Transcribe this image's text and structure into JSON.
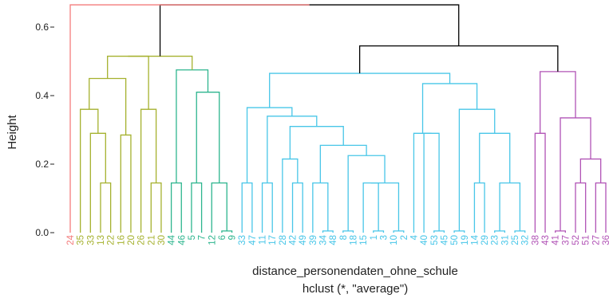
{
  "chart_data": {
    "type": "dendrogram",
    "xlabel": "distance_personendaten_ohne_schule",
    "sublabel": "hclust (*, \"average\")",
    "ylabel": "Height",
    "ylim": [
      0,
      0.66
    ],
    "yticks": [
      "0.0",
      "0.2",
      "0.4",
      "0.6"
    ],
    "ytick_values": [
      0,
      0.2,
      0.4,
      0.6
    ],
    "colors": {
      "red": "#f47c7c",
      "olive": "#a5b12e",
      "green": "#2db58e",
      "cyan": "#48c6e8",
      "purple": "#b153b6",
      "black": "#000000"
    },
    "leaves": [
      {
        "label": "24",
        "group": "red"
      },
      {
        "label": "35",
        "group": "olive"
      },
      {
        "label": "33",
        "group": "olive"
      },
      {
        "label": "13",
        "group": "olive"
      },
      {
        "label": "22",
        "group": "olive"
      },
      {
        "label": "16",
        "group": "olive"
      },
      {
        "label": "20",
        "group": "olive"
      },
      {
        "label": "26",
        "group": "olive"
      },
      {
        "label": "21",
        "group": "olive"
      },
      {
        "label": "30",
        "group": "olive"
      },
      {
        "label": "44",
        "group": "green"
      },
      {
        "label": "46",
        "group": "green"
      },
      {
        "label": "5",
        "group": "green"
      },
      {
        "label": "7",
        "group": "green"
      },
      {
        "label": "12",
        "group": "green"
      },
      {
        "label": "6",
        "group": "green"
      },
      {
        "label": "9",
        "group": "green"
      },
      {
        "label": "33",
        "group": "cyan"
      },
      {
        "label": "47",
        "group": "cyan"
      },
      {
        "label": "11",
        "group": "cyan"
      },
      {
        "label": "17",
        "group": "cyan"
      },
      {
        "label": "28",
        "group": "cyan"
      },
      {
        "label": "42",
        "group": "cyan"
      },
      {
        "label": "49",
        "group": "cyan"
      },
      {
        "label": "39",
        "group": "cyan"
      },
      {
        "label": "34",
        "group": "cyan"
      },
      {
        "label": "48",
        "group": "cyan"
      },
      {
        "label": "8",
        "group": "cyan"
      },
      {
        "label": "18",
        "group": "cyan"
      },
      {
        "label": "15",
        "group": "cyan"
      },
      {
        "label": "1",
        "group": "cyan"
      },
      {
        "label": "3",
        "group": "cyan"
      },
      {
        "label": "10",
        "group": "cyan"
      },
      {
        "label": "2",
        "group": "cyan"
      },
      {
        "label": "4",
        "group": "cyan"
      },
      {
        "label": "40",
        "group": "cyan"
      },
      {
        "label": "53",
        "group": "cyan"
      },
      {
        "label": "45",
        "group": "cyan"
      },
      {
        "label": "50",
        "group": "cyan"
      },
      {
        "label": "19",
        "group": "cyan"
      },
      {
        "label": "14",
        "group": "cyan"
      },
      {
        "label": "29",
        "group": "cyan"
      },
      {
        "label": "23",
        "group": "cyan"
      },
      {
        "label": "31",
        "group": "cyan"
      },
      {
        "label": "25",
        "group": "cyan"
      },
      {
        "label": "32",
        "group": "cyan"
      },
      {
        "label": "38",
        "group": "purple"
      },
      {
        "label": "43",
        "group": "purple"
      },
      {
        "label": "41",
        "group": "purple"
      },
      {
        "label": "37",
        "group": "purple"
      },
      {
        "label": "52",
        "group": "purple"
      },
      {
        "label": "51",
        "group": "purple"
      },
      {
        "label": "27",
        "group": "purple"
      },
      {
        "label": "36",
        "group": "purple"
      }
    ],
    "merges": [
      {
        "left": 3,
        "right": 4,
        "height": 0.145,
        "group": "olive"
      },
      {
        "left": 2,
        "right": "m0",
        "height": 0.29,
        "group": "olive"
      },
      {
        "left": 1,
        "right": "m1",
        "height": 0.36,
        "group": "olive"
      },
      {
        "left": 5,
        "right": 6,
        "height": 0.285,
        "group": "olive"
      },
      {
        "left": "m2",
        "right": "m3",
        "height": 0.45,
        "group": "olive"
      },
      {
        "left": 8,
        "right": 9,
        "height": 0.145,
        "group": "olive"
      },
      {
        "left": 7,
        "right": "m5",
        "height": 0.36,
        "group": "olive"
      },
      {
        "left": "m4",
        "right": "m6",
        "height": 0.515,
        "group": "olive"
      },
      {
        "left": 10,
        "right": 11,
        "height": 0.145,
        "group": "green"
      },
      {
        "left": 12,
        "right": 13,
        "height": 0.145,
        "group": "green"
      },
      {
        "left": 15,
        "right": 16,
        "height": 0.005,
        "group": "green"
      },
      {
        "left": 14,
        "right": "m10",
        "height": 0.145,
        "group": "green"
      },
      {
        "left": "m9",
        "right": "m11",
        "height": 0.41,
        "group": "green"
      },
      {
        "left": "m8",
        "right": "m12",
        "height": 0.475,
        "group": "green"
      },
      {
        "left": "m7",
        "right": "m13",
        "height": 0.515,
        "group": "olive"
      },
      {
        "left": 17,
        "right": 18,
        "height": 0.145,
        "group": "cyan"
      },
      {
        "left": 19,
        "right": 20,
        "height": 0.145,
        "group": "cyan"
      },
      {
        "left": 22,
        "right": 23,
        "height": 0.145,
        "group": "cyan"
      },
      {
        "left": 21,
        "right": "m17",
        "height": 0.215,
        "group": "cyan"
      },
      {
        "left": 25,
        "right": 26,
        "height": 0.005,
        "group": "cyan"
      },
      {
        "left": 24,
        "right": "m19",
        "height": 0.145,
        "group": "cyan"
      },
      {
        "left": 27,
        "right": 28,
        "height": 0.005,
        "group": "cyan"
      },
      {
        "left": 30,
        "right": 31,
        "height": 0.005,
        "group": "cyan"
      },
      {
        "left": 29,
        "right": "m22",
        "height": 0.145,
        "group": "cyan"
      },
      {
        "left": 32,
        "right": 33,
        "height": 0.005,
        "group": "cyan"
      },
      {
        "left": "m23",
        "right": "m24",
        "height": 0.145,
        "group": "cyan"
      },
      {
        "left": "m21",
        "right": "m25",
        "height": 0.225,
        "group": "cyan"
      },
      {
        "left": "m20",
        "right": "m26",
        "height": 0.255,
        "group": "cyan"
      },
      {
        "left": "m18",
        "right": "m27",
        "height": 0.31,
        "group": "cyan"
      },
      {
        "left": "m16",
        "right": "m28",
        "height": 0.34,
        "group": "cyan"
      },
      {
        "left": "m15",
        "right": "m29",
        "height": 0.365,
        "group": "cyan"
      },
      {
        "left": 36,
        "right": 37,
        "height": 0.005,
        "group": "cyan"
      },
      {
        "left": 35,
        "right": "m31",
        "height": 0.29,
        "group": "cyan"
      },
      {
        "left": 34,
        "right": "m32",
        "height": 0.29,
        "group": "cyan"
      },
      {
        "left": 38,
        "right": 39,
        "height": 0.005,
        "group": "cyan"
      },
      {
        "left": 40,
        "right": 41,
        "height": 0.145,
        "group": "cyan"
      },
      {
        "left": 42,
        "right": 43,
        "height": 0.005,
        "group": "cyan"
      },
      {
        "left": 44,
        "right": 45,
        "height": 0.005,
        "group": "cyan"
      },
      {
        "left": "m36",
        "right": "m37",
        "height": 0.145,
        "group": "cyan"
      },
      {
        "left": "m35",
        "right": "m38",
        "height": 0.29,
        "group": "cyan"
      },
      {
        "left": "m34",
        "right": "m39",
        "height": 0.36,
        "group": "cyan"
      },
      {
        "left": "m33",
        "right": "m40",
        "height": 0.435,
        "group": "cyan"
      },
      {
        "left": "m30",
        "right": "m41",
        "height": 0.465,
        "group": "cyan"
      },
      {
        "left": 46,
        "right": 47,
        "height": 0.29,
        "group": "purple"
      },
      {
        "left": 48,
        "right": 49,
        "height": 0.005,
        "group": "purple"
      },
      {
        "left": 50,
        "right": 51,
        "height": 0.145,
        "group": "purple"
      },
      {
        "left": 52,
        "right": 53,
        "height": 0.145,
        "group": "purple"
      },
      {
        "left": "m45",
        "right": "m46",
        "height": 0.215,
        "group": "purple"
      },
      {
        "left": "m44",
        "right": "m47",
        "height": 0.335,
        "group": "purple"
      },
      {
        "left": "m43",
        "right": "m48",
        "height": 0.47,
        "group": "purple"
      },
      {
        "left": "m42",
        "right": "m49",
        "height": 0.545,
        "group": "black"
      },
      {
        "left": "m14",
        "right": "m50",
        "height": 0.665,
        "group": "black"
      },
      {
        "left": 0,
        "right": "m51",
        "height": 0.665,
        "group": "red"
      }
    ]
  }
}
